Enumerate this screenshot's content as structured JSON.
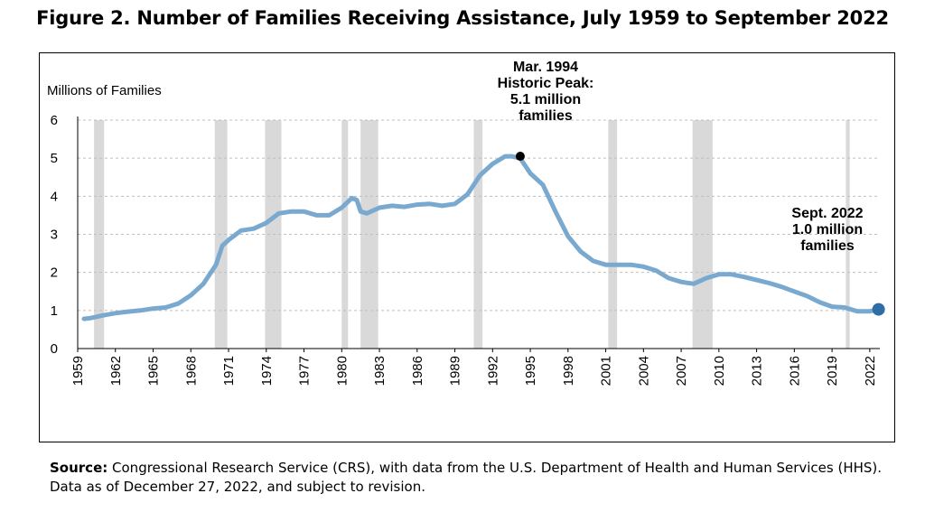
{
  "figure": {
    "title": "Figure 2. Number of Families Receiving Assistance, July 1959 to September 2022"
  },
  "source": {
    "label": "Source:",
    "text": "Congressional Research Service (CRS), with data from the U.S. Department of Health and Human Services (HHS). Data as of December 27, 2022, and subject to revision."
  },
  "colors": {
    "line": "#7aa9d0",
    "recession": "#d9d9d9",
    "grid": "#bfbfbf",
    "end_marker": "#2f6ea5",
    "peak_marker": "#000000"
  },
  "chart_data": {
    "type": "line",
    "title": "Figure 2. Number of Families Receiving Assistance, July 1959 to September 2022",
    "ylabel": "Millions of Families",
    "xlabel": "",
    "ylim": [
      0,
      6
    ],
    "yticks": [
      "0",
      "1",
      "2",
      "3",
      "4",
      "5",
      "6"
    ],
    "xlim": [
      1959,
      2022.8
    ],
    "xticks": [
      "1959",
      "1962",
      "1965",
      "1968",
      "1971",
      "1974",
      "1977",
      "1980",
      "1983",
      "1986",
      "1989",
      "1992",
      "1995",
      "1998",
      "2001",
      "2004",
      "2007",
      "2010",
      "2013",
      "2016",
      "2019",
      "2022"
    ],
    "grid": "horizontal dashed",
    "recessions": [
      [
        1960.3,
        1961.1
      ],
      [
        1969.9,
        1970.9
      ],
      [
        1973.9,
        1975.2
      ],
      [
        1980.0,
        1980.5
      ],
      [
        1981.5,
        1982.9
      ],
      [
        1990.5,
        1991.2
      ],
      [
        2001.2,
        2001.9
      ],
      [
        2007.9,
        2009.5
      ],
      [
        2020.1,
        2020.4
      ]
    ],
    "series": [
      {
        "x": [
          1959.5,
          1960,
          1961,
          1962,
          1963,
          1964,
          1965,
          1966,
          1967,
          1968,
          1969,
          1970,
          1970.5,
          1971,
          1972,
          1973,
          1974,
          1975,
          1976,
          1977,
          1978,
          1979,
          1980,
          1980.8,
          1981.2,
          1981.5,
          1982,
          1983,
          1984,
          1985,
          1986,
          1987,
          1988,
          1989,
          1990,
          1991,
          1992,
          1993,
          1993.5,
          1994.2,
          1995,
          1996,
          1997,
          1998,
          1999,
          2000,
          2001,
          2002,
          2003,
          2004,
          2005,
          2006,
          2007,
          2008,
          2009,
          2010,
          2011,
          2012,
          2013,
          2014,
          2015,
          2016,
          2017,
          2018,
          2019,
          2020,
          2021,
          2022,
          2022.7
        ],
        "y": [
          0.78,
          0.8,
          0.87,
          0.93,
          0.97,
          1.0,
          1.05,
          1.08,
          1.18,
          1.4,
          1.7,
          2.2,
          2.7,
          2.85,
          3.1,
          3.15,
          3.3,
          3.55,
          3.6,
          3.6,
          3.5,
          3.5,
          3.7,
          3.95,
          3.9,
          3.6,
          3.55,
          3.7,
          3.75,
          3.72,
          3.78,
          3.8,
          3.75,
          3.8,
          4.05,
          4.55,
          4.85,
          5.05,
          5.05,
          5.0,
          4.6,
          4.3,
          3.6,
          2.95,
          2.55,
          2.3,
          2.2,
          2.2,
          2.2,
          2.15,
          2.05,
          1.85,
          1.75,
          1.7,
          1.85,
          1.95,
          1.95,
          1.88,
          1.8,
          1.72,
          1.62,
          1.5,
          1.38,
          1.22,
          1.1,
          1.08,
          0.98,
          0.98,
          1.03
        ]
      }
    ],
    "annotations": [
      {
        "lines": [
          "Mar. 1994",
          "Historic Peak:",
          "5.1 million",
          "families"
        ],
        "x": 1994.2,
        "y": 5.05
      },
      {
        "lines": [
          "Sept. 2022",
          "1.0 million",
          "families"
        ],
        "x": 2022.7,
        "y": 1.03
      }
    ]
  }
}
